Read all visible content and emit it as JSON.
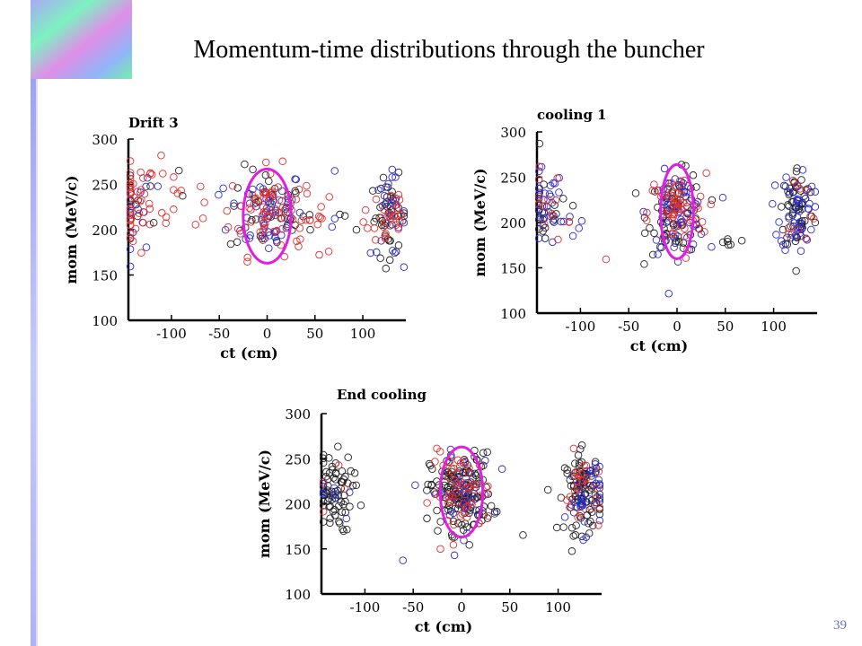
{
  "slide": {
    "title": "Momentum-time distributions through the buncher",
    "page_number": "39"
  },
  "colors": {
    "red": "#e0302e",
    "blue": "#2a2ad0",
    "black": "#222222",
    "ellipse": "#e21ee2"
  },
  "chart_data": [
    {
      "type": "scatter",
      "title": "Drift 3",
      "xlabel": "ct   (cm)",
      "ylabel": "mom   (MeV/c)",
      "xlim": [
        -145,
        145
      ],
      "ylim": [
        100,
        300
      ],
      "xticks": [
        -100,
        -50,
        0,
        50,
        100
      ],
      "yticks": [
        100,
        150,
        200,
        250,
        300
      ],
      "ellipse": {
        "cx": 0,
        "cy": 215,
        "rx": 25,
        "ry": 52
      },
      "clusters": [
        {
          "cx": -140,
          "cy": 225,
          "sx": 12,
          "sy": 25,
          "counts": {
            "red": 40,
            "blue": 14,
            "black": 10
          }
        },
        {
          "cx": -95,
          "cy": 232,
          "sx": 25,
          "sy": 20,
          "counts": {
            "red": 15,
            "blue": 2,
            "black": 4
          }
        },
        {
          "cx": 0,
          "cy": 220,
          "sx": 20,
          "sy": 24,
          "counts": {
            "red": 60,
            "blue": 55,
            "black": 35
          }
        },
        {
          "cx": 40,
          "cy": 230,
          "sx": 15,
          "sy": 20,
          "counts": {
            "red": 15,
            "blue": 2,
            "black": 2
          }
        },
        {
          "cx": 85,
          "cy": 203,
          "sx": 20,
          "sy": 8,
          "counts": {
            "red": 6,
            "blue": 2,
            "black": 4
          }
        },
        {
          "cx": 128,
          "cy": 215,
          "sx": 10,
          "sy": 22,
          "counts": {
            "red": 25,
            "blue": 25,
            "black": 40
          }
        }
      ]
    },
    {
      "type": "scatter",
      "title": "cooling 1",
      "xlabel": "ct   (cm)",
      "ylabel": "mom   (MeV/c)",
      "xlim": [
        -145,
        145
      ],
      "ylim": [
        100,
        300
      ],
      "xticks": [
        -100,
        -50,
        0,
        50,
        100
      ],
      "yticks": [
        100,
        150,
        200,
        250,
        300
      ],
      "ellipse": {
        "cx": 0,
        "cy": 212,
        "rx": 17,
        "ry": 52
      },
      "clusters": [
        {
          "cx": -138,
          "cy": 215,
          "sx": 10,
          "sy": 22,
          "counts": {
            "red": 12,
            "blue": 28,
            "black": 20
          }
        },
        {
          "cx": -110,
          "cy": 205,
          "sx": 10,
          "sy": 12,
          "counts": {
            "red": 2,
            "blue": 6,
            "black": 4
          }
        },
        {
          "cx": -75,
          "cy": 158,
          "sx": 1,
          "sy": 1,
          "counts": {
            "red": 1,
            "blue": 0,
            "black": 0
          }
        },
        {
          "cx": 0,
          "cy": 210,
          "sx": 15,
          "sy": 22,
          "counts": {
            "red": 60,
            "blue": 60,
            "black": 70
          }
        },
        {
          "cx": 50,
          "cy": 180,
          "sx": 10,
          "sy": 8,
          "counts": {
            "red": 0,
            "blue": 0,
            "black": 6
          }
        },
        {
          "cx": 125,
          "cy": 215,
          "sx": 9,
          "sy": 24,
          "counts": {
            "red": 10,
            "blue": 45,
            "black": 55
          }
        }
      ]
    },
    {
      "type": "scatter",
      "title": "End cooling",
      "xlabel": "ct   (cm)",
      "ylabel": "mom   (MeV/c)",
      "xlim": [
        -145,
        145
      ],
      "ylim": [
        100,
        300
      ],
      "xticks": [
        -100,
        -50,
        0,
        50,
        100
      ],
      "yticks": [
        100,
        150,
        200,
        250,
        300
      ],
      "ellipse": {
        "cx": 0,
        "cy": 213,
        "rx": 22,
        "ry": 50
      },
      "clusters": [
        {
          "cx": -135,
          "cy": 212,
          "sx": 11,
          "sy": 22,
          "counts": {
            "red": 4,
            "blue": 8,
            "black": 70
          }
        },
        {
          "cx": -105,
          "cy": 198,
          "sx": 1,
          "sy": 1,
          "counts": {
            "red": 0,
            "blue": 0,
            "black": 1
          }
        },
        {
          "cx": -60,
          "cy": 136,
          "sx": 1,
          "sy": 1,
          "counts": {
            "red": 0,
            "blue": 1,
            "black": 0
          }
        },
        {
          "cx": 0,
          "cy": 212,
          "sx": 16,
          "sy": 22,
          "counts": {
            "red": 55,
            "blue": 40,
            "black": 150
          }
        },
        {
          "cx": 65,
          "cy": 164,
          "sx": 1,
          "sy": 1,
          "counts": {
            "red": 0,
            "blue": 0,
            "black": 1
          }
        },
        {
          "cx": 127,
          "cy": 212,
          "sx": 10,
          "sy": 22,
          "counts": {
            "red": 25,
            "blue": 35,
            "black": 90
          }
        }
      ]
    }
  ]
}
